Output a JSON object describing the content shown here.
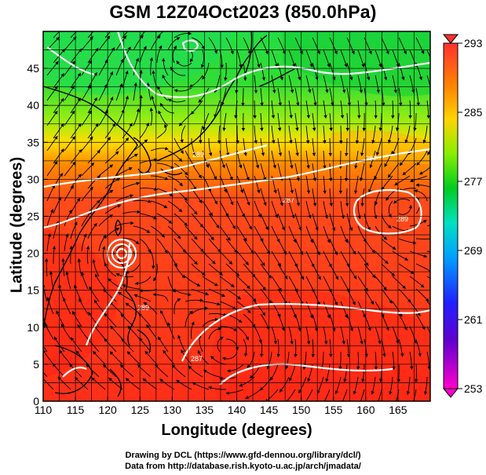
{
  "title": "GSM 12Z04Oct2023 (850.0hPa)",
  "xlabel": "Longitude (degrees)",
  "ylabel": "Latitude  (degrees)",
  "x_ticks": [
    "110",
    "115",
    "120",
    "125",
    "130",
    "135",
    "140",
    "145",
    "150",
    "155",
    "160",
    "165"
  ],
  "y_ticks": [
    "0",
    "5",
    "10",
    "15",
    "20",
    "25",
    "30",
    "35",
    "40",
    "45"
  ],
  "colorbar_ticks": [
    "253",
    "261",
    "269",
    "277",
    "285",
    "293"
  ],
  "contour_labels": [
    "287",
    "287",
    "289",
    "287",
    "289",
    "289"
  ],
  "credit_line1": "Drawing by DCL (https://www.gfd-dennou.org/library/dcl/)",
  "credit_line2": "Data from http://database.rish.kyoto-u.ac.jp/arch/jmadata/",
  "map": {
    "lon_range": [
      110,
      170
    ],
    "lat_range": [
      0,
      50
    ],
    "colorbar_range": [
      253,
      293
    ],
    "colors": {
      "cold": "#ff00ff",
      "blue": "#0000ff",
      "cyan": "#00ffff",
      "green": "#00cc00",
      "yellow": "#ffff00",
      "orange": "#ff8800",
      "warm": "#ff2a1a"
    }
  }
}
